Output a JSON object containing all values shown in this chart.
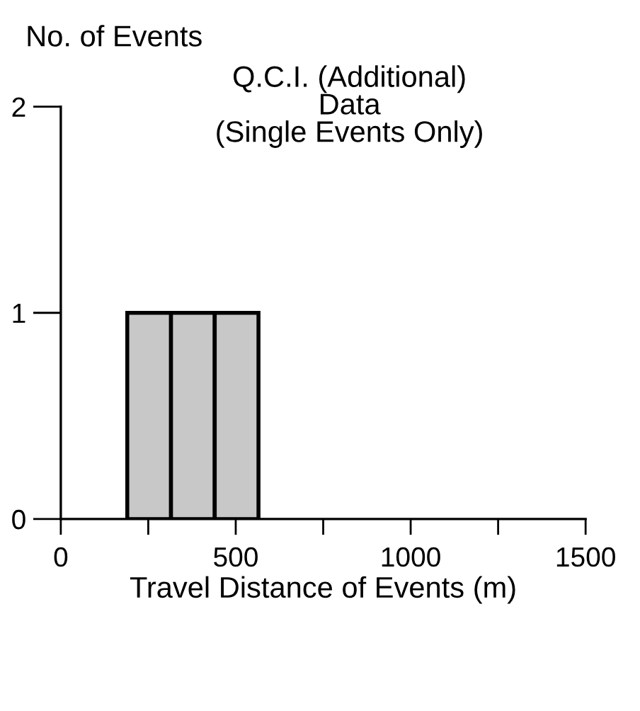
{
  "chart_data": {
    "type": "histogram",
    "title": "Q.C.I. (Additional)\nData\n(Single Events Only)",
    "ylabel": "No. of Events",
    "xlabel": "Travel Distance of Events (m)",
    "bins": [
      190,
      315,
      440,
      565
    ],
    "values": [
      1,
      1,
      1
    ],
    "color": "#c8c8c8",
    "xlim": [
      0,
      1500
    ],
    "xticks": [
      0,
      {
        "value": 250,
        "label": null
      },
      500,
      {
        "value": 750,
        "label": null
      },
      1000,
      {
        "value": 1250,
        "label": null
      },
      1500
    ],
    "ylim": [
      0,
      2
    ],
    "yticks": [
      0,
      1,
      2
    ],
    "grid": false,
    "legend": false
  }
}
